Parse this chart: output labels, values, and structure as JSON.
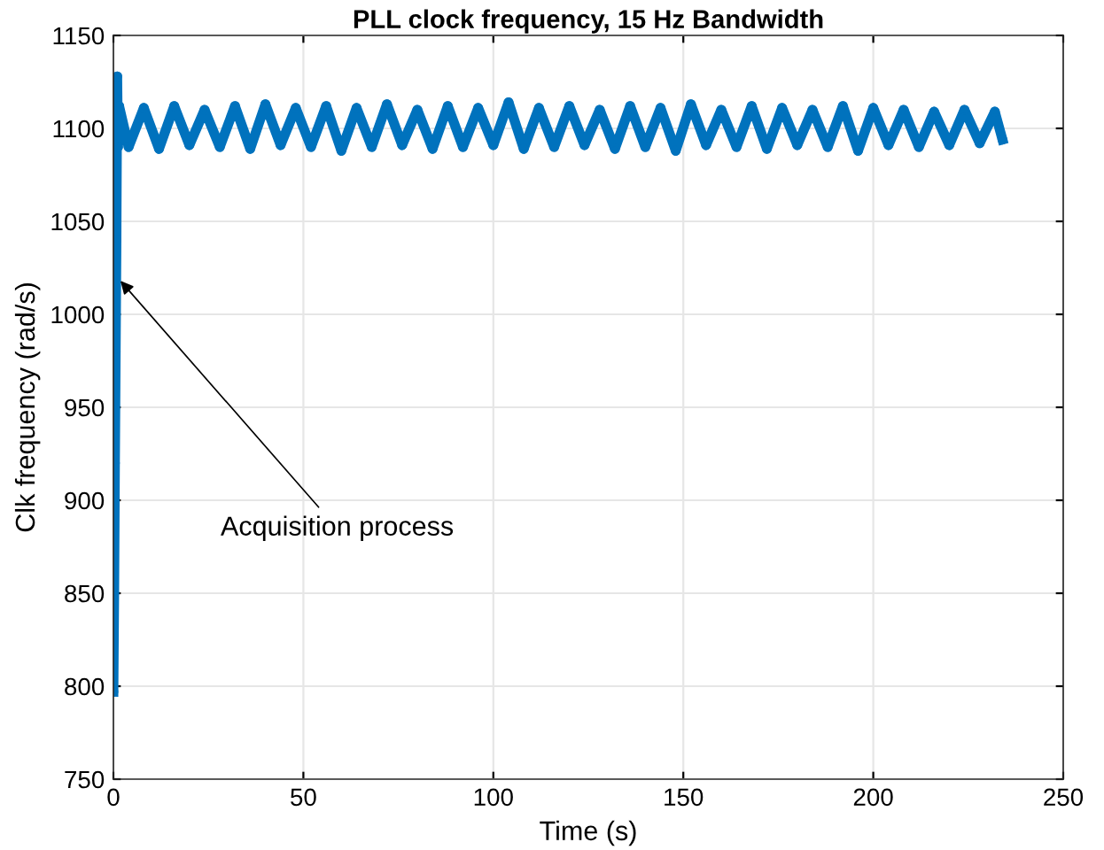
{
  "chart_data": {
    "type": "line",
    "title": "PLL clock frequency, 15 Hz Bandwidth",
    "xlabel": "Time (s)",
    "ylabel": "Clk frequency (rad/s)",
    "series": [
      {
        "color": "#0072bd",
        "x": [
          0,
          0.2,
          0.4,
          0.6,
          0.8,
          1.0,
          1.2,
          1.5,
          4,
          8,
          12,
          16,
          20,
          24,
          28,
          32,
          36,
          40,
          44,
          48,
          52,
          56,
          60,
          64,
          68,
          72,
          76,
          80,
          84,
          88,
          92,
          96,
          100,
          104,
          108,
          112,
          116,
          120,
          124,
          128,
          132,
          136,
          140,
          144,
          148,
          152,
          156,
          160,
          164,
          168,
          172,
          176,
          180,
          184,
          188,
          192,
          196,
          200,
          204,
          208,
          212,
          216,
          220,
          224,
          228,
          232,
          234
        ],
        "values": [
          797,
          850,
          920,
          980,
          1040,
          1128,
          1090,
          1112,
          1090,
          1111,
          1089,
          1112,
          1091,
          1110,
          1090,
          1112,
          1089,
          1113,
          1091,
          1111,
          1090,
          1112,
          1088,
          1111,
          1090,
          1113,
          1091,
          1110,
          1089,
          1112,
          1090,
          1111,
          1091,
          1114,
          1089,
          1111,
          1090,
          1112,
          1091,
          1110,
          1089,
          1112,
          1090,
          1111,
          1088,
          1113,
          1091,
          1110,
          1090,
          1112,
          1089,
          1111,
          1091,
          1110,
          1090,
          1112,
          1088,
          1111,
          1091,
          1110,
          1090,
          1109,
          1091,
          1110,
          1092,
          1109,
          1094
        ]
      }
    ],
    "marker": "circle",
    "line_style": "solid",
    "grid": true,
    "xlim": [
      0,
      250
    ],
    "xticks": [
      0,
      50,
      100,
      150,
      200,
      250
    ],
    "ylim": [
      750,
      1150
    ],
    "yticks": [
      750,
      800,
      850,
      900,
      950,
      1000,
      1050,
      1100,
      1150
    ],
    "annotations": [
      {
        "text": "Acquisition process",
        "x": 1,
        "y": 1020
      }
    ]
  }
}
